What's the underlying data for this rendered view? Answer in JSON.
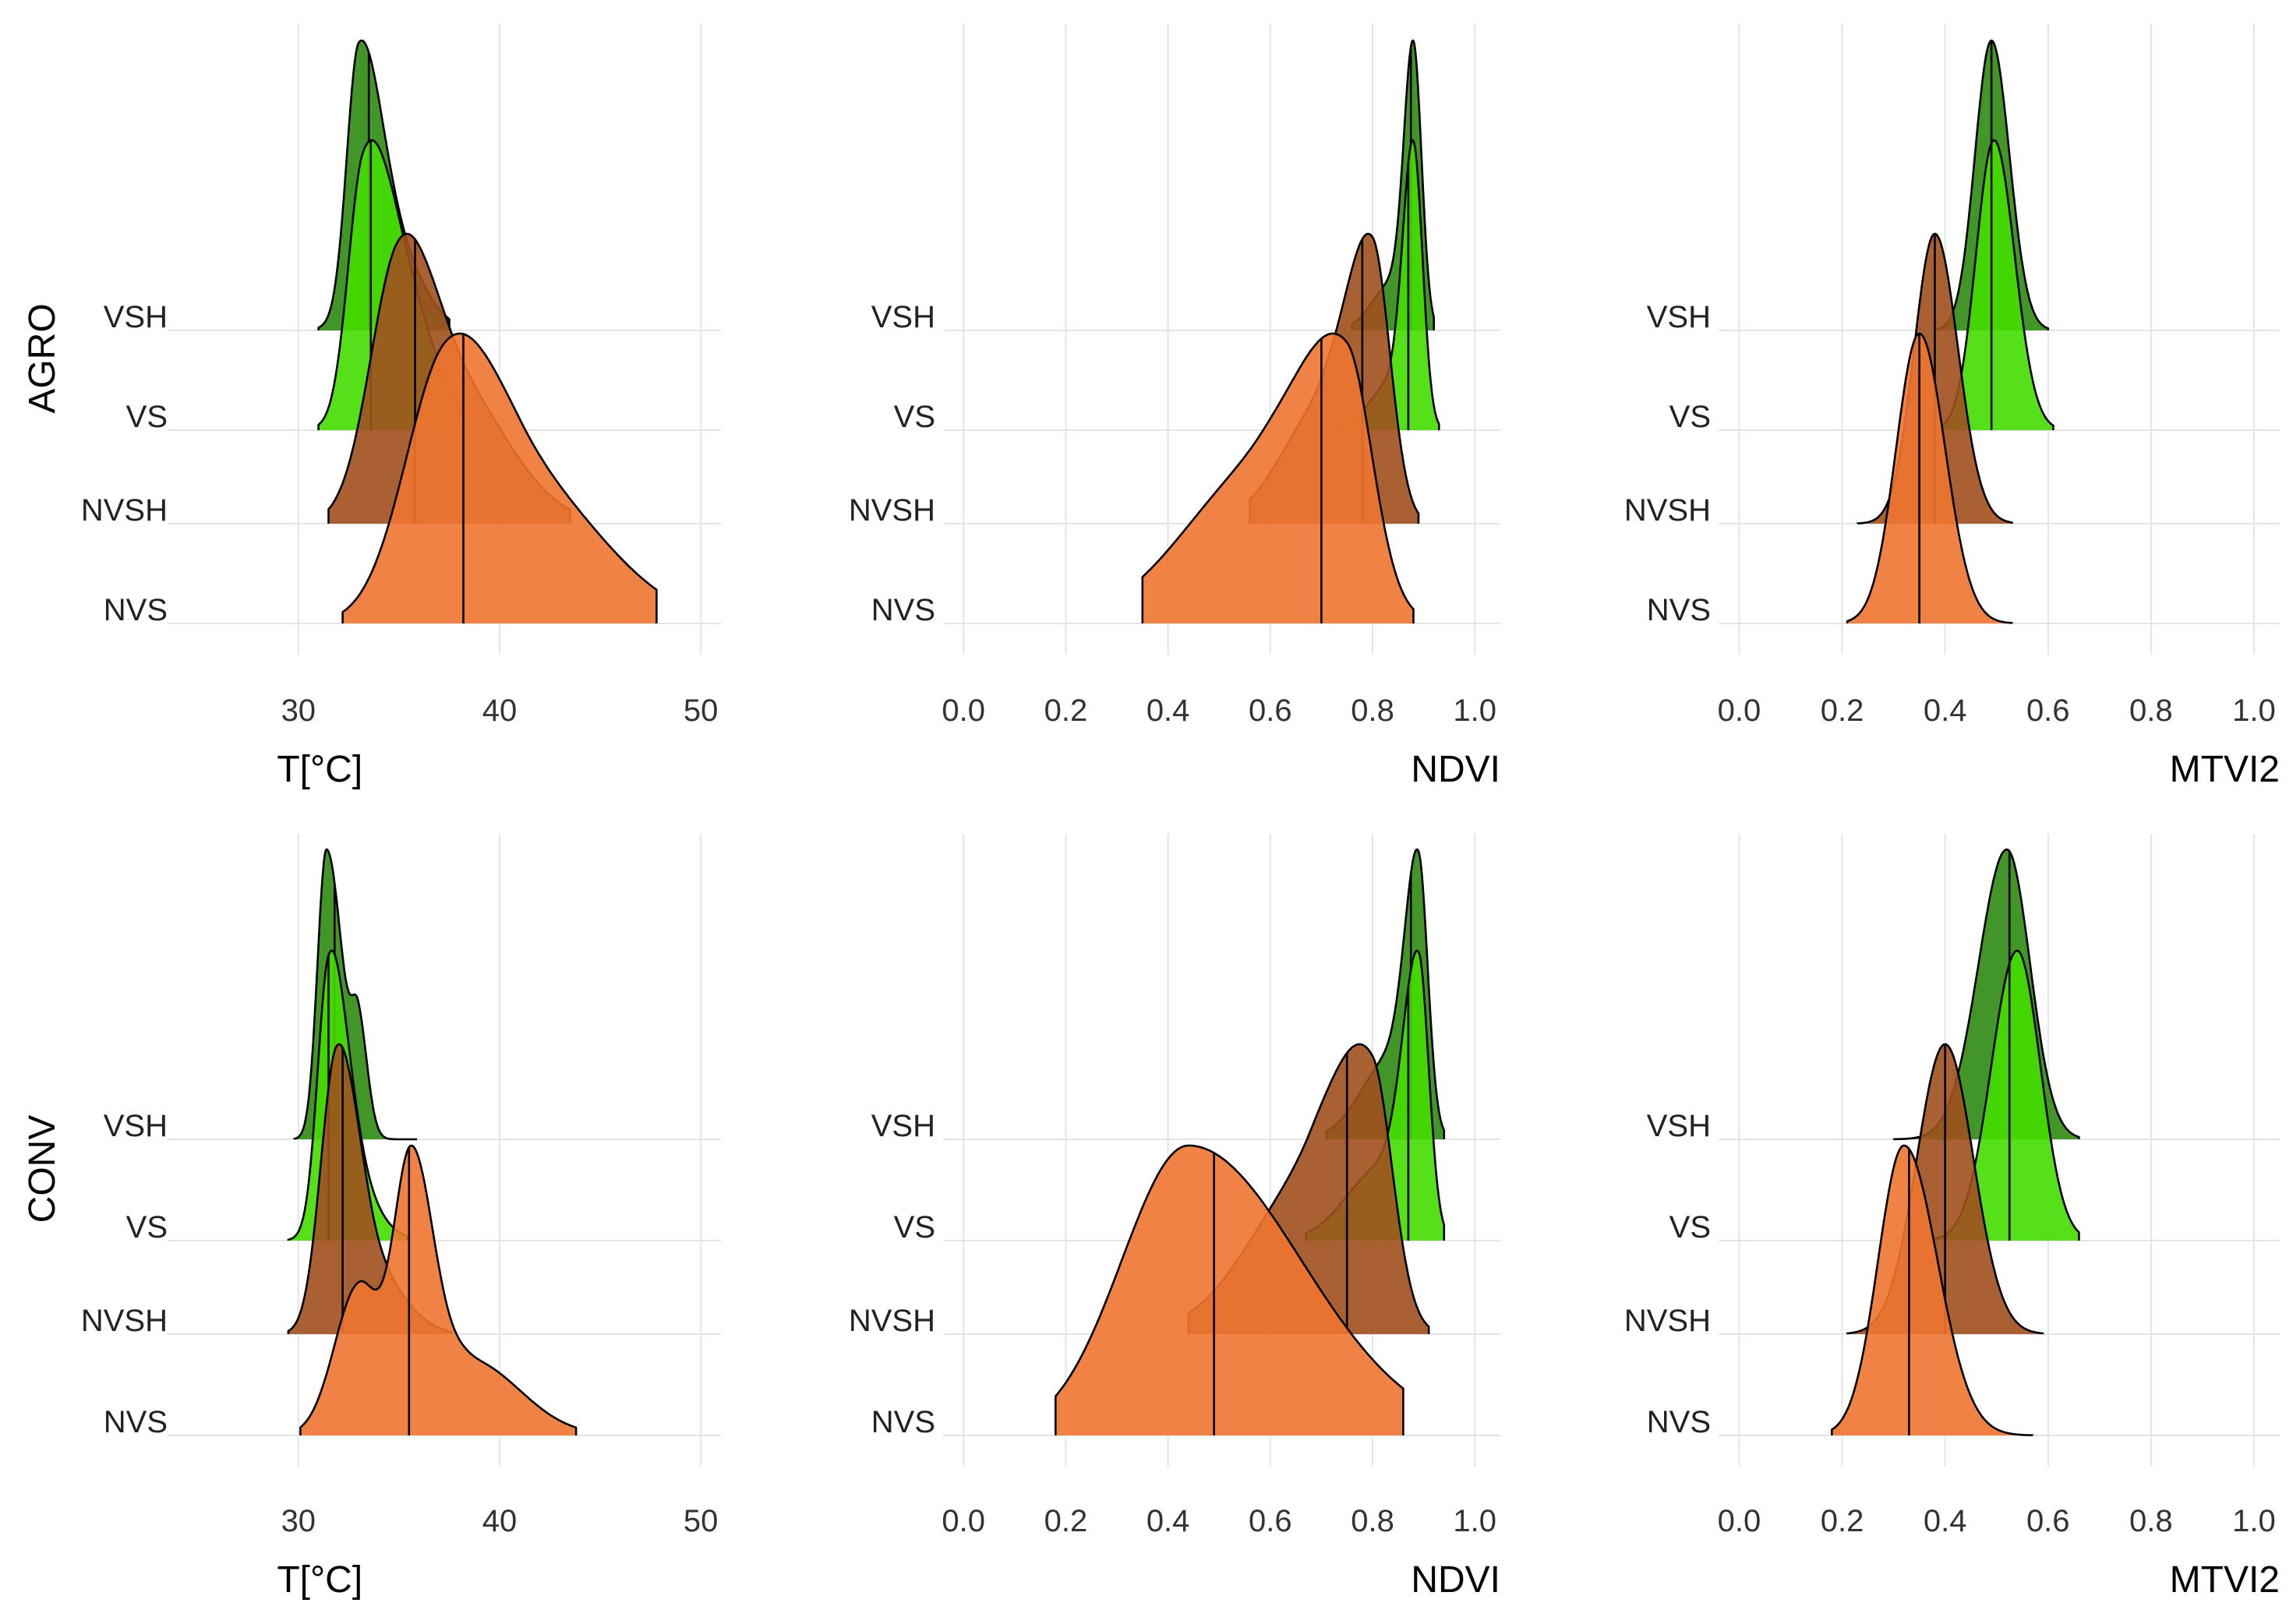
{
  "chart_data": {
    "type": "ridgeline",
    "rows": [
      "AGRO",
      "CONV"
    ],
    "categories": [
      "NVS",
      "NVSH",
      "VS",
      "VSH"
    ],
    "colors": {
      "VSH": "#2E8B10",
      "VS": "#44DD00",
      "NVSH": "#A0501E",
      "NVS": "#EE7630"
    },
    "panels": [
      {
        "row": "AGRO",
        "col": 0,
        "xlabel": "T[°C]",
        "xlim": [
          23.5,
          51
        ],
        "ticks": [
          30,
          40,
          50
        ],
        "tick_labels": [
          "30",
          "40",
          "50"
        ],
        "max_height_units": 3.0,
        "series": [
          {
            "name": "VSH",
            "median": 33.5,
            "range": [
              31.0,
              37.5
            ],
            "components": [
              [
                0.78,
                33.0,
                0.6,
                1.1
              ],
              [
                0.22,
                34.8,
                1.4,
                1.4
              ]
            ]
          },
          {
            "name": "VS",
            "median": 33.6,
            "range": [
              31.0,
              38.4
            ],
            "components": [
              [
                0.6,
                33.2,
                0.75,
                1.2
              ],
              [
                0.4,
                35.0,
                1.4,
                1.6
              ]
            ]
          },
          {
            "name": "NVSH",
            "median": 35.8,
            "range": [
              31.5,
              43.5
            ],
            "components": [
              [
                0.6,
                34.9,
                1.4,
                1.6
              ],
              [
                0.4,
                37.5,
                2.2,
                2.8
              ]
            ]
          },
          {
            "name": "NVS",
            "median": 38.2,
            "range": [
              32.2,
              47.8
            ],
            "components": [
              [
                0.6,
                37.2,
                2.0,
                2.4
              ],
              [
                0.4,
                41.0,
                3.0,
                4.0
              ]
            ]
          }
        ]
      },
      {
        "row": "AGRO",
        "col": 1,
        "xlabel": "NDVI",
        "xlim": [
          -0.04,
          1.05
        ],
        "ticks": [
          0.0,
          0.2,
          0.4,
          0.6,
          0.8,
          1.0
        ],
        "tick_labels": [
          "0.0",
          "0.2",
          "0.4",
          "0.6",
          "0.8",
          "1.0"
        ],
        "max_height_units": 3.0,
        "series": [
          {
            "name": "VSH",
            "median": 0.875,
            "range": [
              0.76,
              0.92
            ],
            "components": [
              [
                0.85,
                0.88,
                0.018,
                0.016
              ],
              [
                0.15,
                0.84,
                0.04,
                0.03
              ]
            ]
          },
          {
            "name": "VS",
            "median": 0.87,
            "range": [
              0.74,
              0.93
            ],
            "components": [
              [
                0.85,
                0.88,
                0.02,
                0.018
              ],
              [
                0.15,
                0.84,
                0.045,
                0.03
              ]
            ]
          },
          {
            "name": "NVSH",
            "median": 0.78,
            "range": [
              0.56,
              0.89
            ],
            "components": [
              [
                0.7,
                0.8,
                0.05,
                0.035
              ],
              [
                0.3,
                0.7,
                0.08,
                0.06
              ]
            ]
          },
          {
            "name": "NVS",
            "median": 0.7,
            "range": [
              0.35,
              0.88
            ],
            "components": [
              [
                0.6,
                0.75,
                0.09,
                0.05
              ],
              [
                0.4,
                0.58,
                0.15,
                0.12
              ]
            ]
          }
        ]
      },
      {
        "row": "AGRO",
        "col": 2,
        "xlabel": "MTVI2",
        "xlim": [
          -0.04,
          1.05
        ],
        "ticks": [
          0.0,
          0.2,
          0.4,
          0.6,
          0.8,
          1.0
        ],
        "tick_labels": [
          "0.0",
          "0.2",
          "0.4",
          "0.6",
          "0.8",
          "1.0"
        ],
        "max_height_units": 3.0,
        "series": [
          {
            "name": "VSH",
            "median": 0.49,
            "range": [
              0.38,
              0.6
            ],
            "components": [
              [
                1.0,
                0.49,
                0.032,
                0.035
              ]
            ]
          },
          {
            "name": "VS",
            "median": 0.49,
            "range": [
              0.38,
              0.61
            ],
            "components": [
              [
                1.0,
                0.495,
                0.035,
                0.04
              ]
            ]
          },
          {
            "name": "NVSH",
            "median": 0.38,
            "range": [
              0.23,
              0.53
            ],
            "components": [
              [
                1.0,
                0.38,
                0.04,
                0.045
              ]
            ]
          },
          {
            "name": "NVS",
            "median": 0.35,
            "range": [
              0.21,
              0.53
            ],
            "components": [
              [
                1.0,
                0.35,
                0.045,
                0.05
              ]
            ]
          }
        ]
      },
      {
        "row": "CONV",
        "col": 0,
        "xlabel": "T[°C]",
        "xlim": [
          23.5,
          51
        ],
        "ticks": [
          30,
          40,
          50
        ],
        "tick_labels": [
          "30",
          "40",
          "50"
        ],
        "max_height_units": 3.0,
        "series": [
          {
            "name": "VSH",
            "median": 31.8,
            "range": [
              29.8,
              35.9
            ],
            "components": [
              [
                0.75,
                31.4,
                0.45,
                0.8
              ],
              [
                0.25,
                33.0,
                0.35,
                0.45
              ]
            ]
          },
          {
            "name": "VS",
            "median": 31.5,
            "range": [
              29.5,
              35.4
            ],
            "components": [
              [
                0.72,
                31.5,
                0.55,
                0.9
              ],
              [
                0.28,
                32.0,
                0.8,
                1.4
              ]
            ]
          },
          {
            "name": "NVSH",
            "median": 32.2,
            "range": [
              29.5,
              37.6
            ],
            "components": [
              [
                0.8,
                31.9,
                0.8,
                1.0
              ],
              [
                0.2,
                33.5,
                1.0,
                1.6
              ]
            ]
          },
          {
            "name": "NVS",
            "median": 35.5,
            "range": [
              30.1,
              43.8
            ],
            "components": [
              [
                0.55,
                35.6,
                0.9,
                1.1
              ],
              [
                0.3,
                33.0,
                1.2,
                1.0
              ],
              [
                0.15,
                38.5,
                1.5,
                2.5
              ]
            ]
          }
        ]
      },
      {
        "row": "CONV",
        "col": 1,
        "xlabel": "NDVI",
        "xlim": [
          -0.04,
          1.05
        ],
        "ticks": [
          0.0,
          0.2,
          0.4,
          0.6,
          0.8,
          1.0
        ],
        "tick_labels": [
          "0.0",
          "0.2",
          "0.4",
          "0.6",
          "0.8",
          "1.0"
        ],
        "max_height_units": 3.0,
        "series": [
          {
            "name": "VSH",
            "median": 0.875,
            "range": [
              0.71,
              0.94
            ],
            "components": [
              [
                0.75,
                0.89,
                0.025,
                0.018
              ],
              [
                0.25,
                0.84,
                0.06,
                0.04
              ]
            ]
          },
          {
            "name": "VS",
            "median": 0.87,
            "range": [
              0.67,
              0.94
            ],
            "components": [
              [
                0.78,
                0.89,
                0.03,
                0.02
              ],
              [
                0.22,
                0.82,
                0.07,
                0.05
              ]
            ]
          },
          {
            "name": "NVSH",
            "median": 0.75,
            "range": [
              0.44,
              0.91
            ],
            "components": [
              [
                0.6,
                0.8,
                0.07,
                0.04
              ],
              [
                0.4,
                0.68,
                0.12,
                0.08
              ]
            ]
          },
          {
            "name": "NVS",
            "median": 0.49,
            "range": [
              0.18,
              0.86
            ],
            "components": [
              [
                1.0,
                0.44,
                0.13,
                0.22
              ]
            ]
          }
        ]
      },
      {
        "row": "CONV",
        "col": 2,
        "xlabel": "MTVI2",
        "xlim": [
          -0.04,
          1.05
        ],
        "ticks": [
          0.0,
          0.2,
          0.4,
          0.6,
          0.8,
          1.0
        ],
        "tick_labels": [
          "0.0",
          "0.2",
          "0.4",
          "0.6",
          "0.8",
          "1.0"
        ],
        "max_height_units": 3.0,
        "series": [
          {
            "name": "VSH",
            "median": 0.525,
            "range": [
              0.3,
              0.66
            ],
            "components": [
              [
                1.0,
                0.52,
                0.055,
                0.045
              ]
            ]
          },
          {
            "name": "VS",
            "median": 0.525,
            "range": [
              0.33,
              0.66
            ],
            "components": [
              [
                1.0,
                0.54,
                0.05,
                0.045
              ]
            ]
          },
          {
            "name": "NVSH",
            "median": 0.4,
            "range": [
              0.21,
              0.59
            ],
            "components": [
              [
                1.0,
                0.4,
                0.055,
                0.055
              ]
            ]
          },
          {
            "name": "NVS",
            "median": 0.33,
            "range": [
              0.18,
              0.57
            ],
            "components": [
              [
                1.0,
                0.32,
                0.05,
                0.065
              ]
            ]
          }
        ]
      }
    ]
  }
}
